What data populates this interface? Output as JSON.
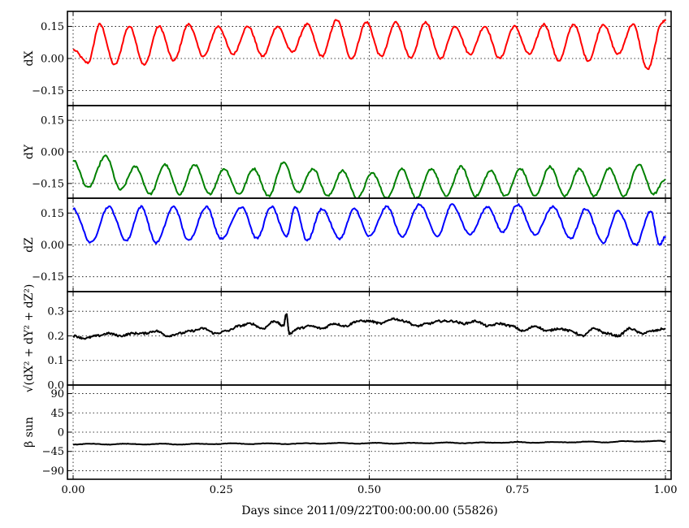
{
  "chart_data": {
    "type": "line",
    "x_range": [
      0.0,
      1.0
    ],
    "x_ticks": [
      0.0,
      0.25,
      0.5,
      0.75,
      1.0
    ],
    "x_tick_labels": [
      "0.00",
      "0.25",
      "0.50",
      "0.75",
      "1.00"
    ],
    "xlabel": "Days since 2011/09/22T00:00:00.00 (55826)",
    "grid": true,
    "panels": [
      {
        "ylabel": "dX",
        "ylim": [
          -0.22,
          0.22
        ],
        "y_ticks": [
          -0.15,
          0.0,
          0.15
        ],
        "y_tick_labels": [
          "−0.15",
          "0.00",
          "0.15"
        ],
        "color": "#ff0000",
        "series": {
          "x": [
            0.0,
            0.025,
            0.045,
            0.07,
            0.095,
            0.12,
            0.145,
            0.17,
            0.195,
            0.22,
            0.245,
            0.27,
            0.295,
            0.32,
            0.345,
            0.37,
            0.395,
            0.42,
            0.445,
            0.47,
            0.495,
            0.52,
            0.545,
            0.57,
            0.595,
            0.62,
            0.645,
            0.67,
            0.695,
            0.72,
            0.745,
            0.77,
            0.795,
            0.82,
            0.845,
            0.87,
            0.895,
            0.92,
            0.945,
            0.97,
            0.995,
            1.0
          ],
          "y": [
            0.04,
            -0.02,
            0.16,
            -0.03,
            0.15,
            -0.03,
            0.15,
            -0.01,
            0.16,
            0.01,
            0.15,
            0.02,
            0.15,
            0.01,
            0.15,
            0.03,
            0.16,
            0.01,
            0.18,
            0.0,
            0.17,
            0.01,
            0.17,
            0.0,
            0.17,
            0.0,
            0.15,
            0.02,
            0.15,
            0.0,
            0.15,
            0.02,
            0.16,
            -0.01,
            0.16,
            -0.01,
            0.16,
            0.02,
            0.16,
            -0.05,
            0.17,
            0.18
          ]
        }
      },
      {
        "ylabel": "dY",
        "ylim": [
          -0.22,
          0.22
        ],
        "y_ticks": [
          -0.15,
          0.0,
          0.15
        ],
        "y_tick_labels": [
          "−0.15",
          "0.00",
          "0.15"
        ],
        "color": "#008000",
        "series": {
          "x": [
            0.0,
            0.025,
            0.055,
            0.08,
            0.105,
            0.13,
            0.155,
            0.18,
            0.205,
            0.23,
            0.255,
            0.28,
            0.305,
            0.33,
            0.355,
            0.38,
            0.405,
            0.43,
            0.455,
            0.48,
            0.505,
            0.53,
            0.555,
            0.58,
            0.605,
            0.63,
            0.655,
            0.68,
            0.705,
            0.73,
            0.755,
            0.78,
            0.805,
            0.83,
            0.855,
            0.88,
            0.905,
            0.93,
            0.955,
            0.98,
            1.0
          ],
          "y": [
            -0.04,
            -0.17,
            -0.02,
            -0.18,
            -0.07,
            -0.2,
            -0.06,
            -0.2,
            -0.06,
            -0.2,
            -0.08,
            -0.2,
            -0.08,
            -0.21,
            -0.05,
            -0.19,
            -0.08,
            -0.21,
            -0.09,
            -0.22,
            -0.1,
            -0.22,
            -0.08,
            -0.22,
            -0.08,
            -0.21,
            -0.07,
            -0.21,
            -0.09,
            -0.21,
            -0.08,
            -0.21,
            -0.07,
            -0.21,
            -0.08,
            -0.21,
            -0.08,
            -0.21,
            -0.06,
            -0.2,
            -0.13
          ]
        }
      },
      {
        "ylabel": "dZ",
        "ylim": [
          -0.22,
          0.22
        ],
        "y_ticks": [
          -0.15,
          0.0,
          0.15
        ],
        "y_tick_labels": [
          "−0.15",
          "0.00",
          "0.15"
        ],
        "color": "#0000ff",
        "series": {
          "x": [
            0.0,
            0.03,
            0.06,
            0.09,
            0.115,
            0.14,
            0.17,
            0.195,
            0.225,
            0.25,
            0.285,
            0.31,
            0.335,
            0.36,
            0.375,
            0.395,
            0.42,
            0.45,
            0.475,
            0.5,
            0.53,
            0.555,
            0.585,
            0.615,
            0.64,
            0.67,
            0.7,
            0.725,
            0.75,
            0.78,
            0.81,
            0.84,
            0.865,
            0.895,
            0.92,
            0.95,
            0.975,
            0.99,
            1.0
          ],
          "y": [
            0.17,
            0.01,
            0.18,
            0.02,
            0.18,
            0.01,
            0.18,
            0.02,
            0.18,
            0.03,
            0.18,
            0.03,
            0.18,
            0.04,
            0.18,
            0.02,
            0.17,
            0.03,
            0.17,
            0.04,
            0.18,
            0.04,
            0.19,
            0.04,
            0.19,
            0.05,
            0.18,
            0.06,
            0.19,
            0.05,
            0.18,
            0.03,
            0.17,
            0.01,
            0.16,
            0.0,
            0.16,
            0.0,
            0.04
          ]
        }
      },
      {
        "ylabel": "√(dX² + dY² + dZ²)",
        "ylim": [
          0.0,
          0.38
        ],
        "y_ticks": [
          0.0,
          0.1,
          0.2,
          0.3
        ],
        "y_tick_labels": [
          "0.0",
          "0.1",
          "0.2",
          "0.3"
        ],
        "color": "#000000",
        "series": {
          "x": [
            0.0,
            0.02,
            0.04,
            0.06,
            0.08,
            0.1,
            0.12,
            0.14,
            0.16,
            0.18,
            0.2,
            0.22,
            0.24,
            0.26,
            0.28,
            0.3,
            0.32,
            0.34,
            0.355,
            0.36,
            0.365,
            0.38,
            0.4,
            0.42,
            0.44,
            0.46,
            0.48,
            0.5,
            0.52,
            0.54,
            0.56,
            0.58,
            0.6,
            0.62,
            0.64,
            0.66,
            0.68,
            0.7,
            0.72,
            0.74,
            0.76,
            0.78,
            0.8,
            0.82,
            0.84,
            0.86,
            0.88,
            0.9,
            0.92,
            0.94,
            0.96,
            0.98,
            1.0
          ],
          "y": [
            0.2,
            0.19,
            0.2,
            0.21,
            0.2,
            0.21,
            0.21,
            0.22,
            0.2,
            0.21,
            0.22,
            0.23,
            0.21,
            0.22,
            0.24,
            0.25,
            0.23,
            0.26,
            0.24,
            0.29,
            0.21,
            0.23,
            0.24,
            0.23,
            0.25,
            0.24,
            0.26,
            0.26,
            0.25,
            0.27,
            0.26,
            0.24,
            0.25,
            0.26,
            0.26,
            0.25,
            0.26,
            0.24,
            0.25,
            0.24,
            0.22,
            0.24,
            0.22,
            0.23,
            0.22,
            0.2,
            0.23,
            0.21,
            0.2,
            0.23,
            0.21,
            0.22,
            0.23
          ]
        }
      },
      {
        "ylabel": "β sun",
        "ylim": [
          -110,
          110
        ],
        "y_ticks": [
          -90,
          -45,
          0,
          45,
          90
        ],
        "y_tick_labels": [
          "−90",
          "−45",
          "0",
          "45",
          "90"
        ],
        "color": "#000000",
        "series": {
          "x": [
            0.0,
            0.03,
            0.06,
            0.09,
            0.12,
            0.15,
            0.18,
            0.21,
            0.24,
            0.27,
            0.3,
            0.33,
            0.36,
            0.39,
            0.42,
            0.45,
            0.48,
            0.51,
            0.54,
            0.57,
            0.6,
            0.63,
            0.66,
            0.69,
            0.72,
            0.75,
            0.78,
            0.81,
            0.84,
            0.87,
            0.9,
            0.93,
            0.96,
            0.99,
            1.0
          ],
          "y": [
            -29,
            -27,
            -29,
            -27,
            -29,
            -27,
            -29,
            -27,
            -28,
            -26,
            -28,
            -26,
            -28,
            -26,
            -27,
            -25,
            -27,
            -25,
            -27,
            -25,
            -26,
            -24,
            -26,
            -24,
            -25,
            -23,
            -25,
            -23,
            -24,
            -22,
            -24,
            -21,
            -22,
            -20,
            -22
          ]
        }
      }
    ]
  }
}
